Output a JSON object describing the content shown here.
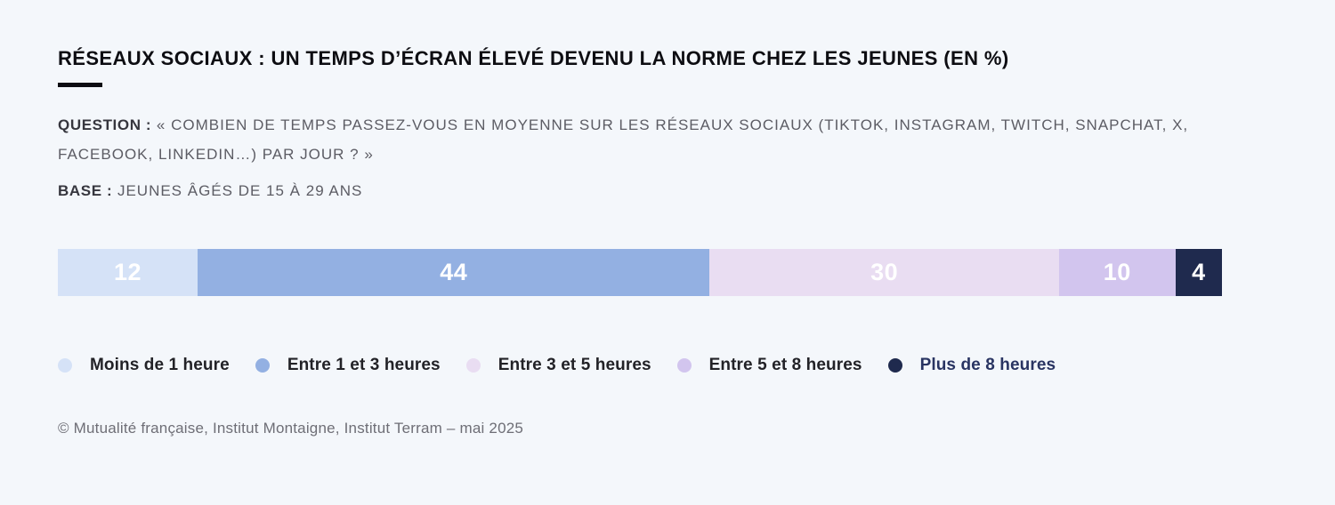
{
  "header": {
    "title": "RÉSEAUX SOCIAUX : UN TEMPS D’ÉCRAN ÉLEVÉ DEVENU LA NORME CHEZ LES JEUNES (EN %)"
  },
  "question": {
    "label": "QUESTION :",
    "text": "« COMBIEN DE TEMPS PASSEZ-VOUS EN MOYENNE SUR LES RÉSEAUX SOCIAUX (TIKTOK, INSTAGRAM, TWITCH, SNAPCHAT, X, FACEBOOK, LINKEDIN…) PAR JOUR ? »"
  },
  "base": {
    "label": "BASE :",
    "text": "JEUNES ÂGÉS DE 15 À 29 ANS"
  },
  "chart_data": {
    "type": "bar",
    "orientation": "horizontal",
    "stacked": true,
    "unit": "%",
    "title": "RÉSEAUX SOCIAUX : UN TEMPS D’ÉCRAN ÉLEVÉ DEVENU LA NORME CHEZ LES JEUNES (EN %)",
    "categories": [
      "Moins de 1 heure",
      "Entre 1 et 3 heures",
      "Entre 3 et 5 heures",
      "Entre 5 et 8 heures",
      "Plus de 8 heures"
    ],
    "values": [
      12,
      44,
      30,
      10,
      4
    ],
    "colors": [
      "#d5e2f7",
      "#93b0e2",
      "#e9ddf2",
      "#d2c5ee",
      "#1f2a4e"
    ],
    "legend_label_colors": [
      "#222227",
      "#222227",
      "#222227",
      "#222227",
      "#293462"
    ],
    "value_label_color": "#ffffff",
    "legend_position": "bottom",
    "xlim": [
      0,
      100
    ]
  },
  "footer": {
    "credit": "© Mutualité française, Institut Montaigne, Institut Terram – mai 2025"
  },
  "colors": {
    "background": "#f4f7fb",
    "accent_line": "#0d0d12"
  }
}
